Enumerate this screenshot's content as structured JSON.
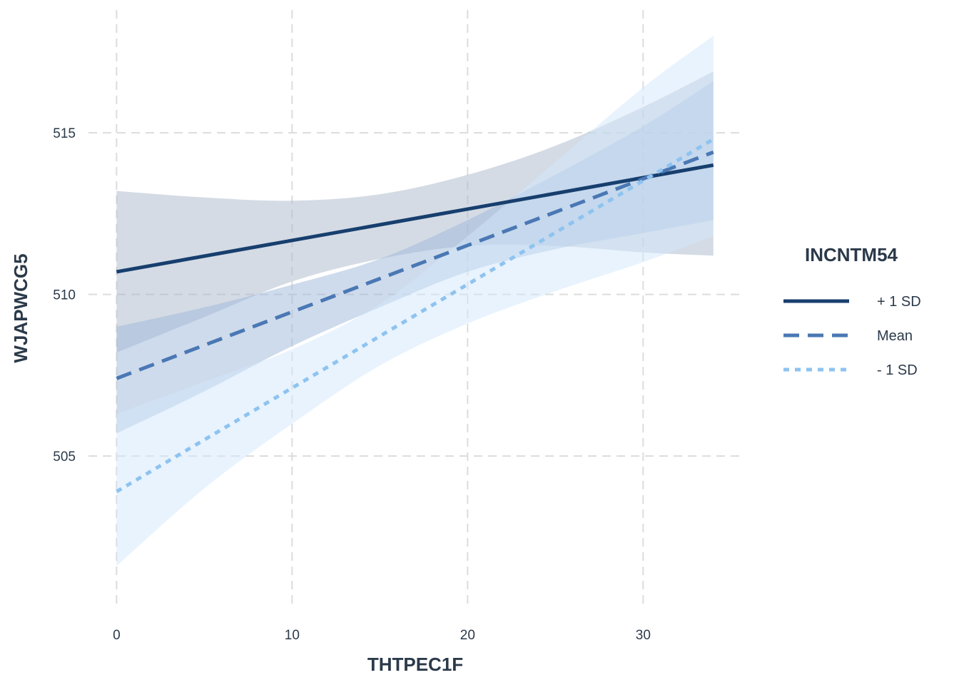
{
  "chart_data": {
    "type": "line",
    "title": "",
    "xlabel": "THTPEC1F",
    "ylabel": "WJAPWCG5",
    "xlim": [
      -1.6,
      35.8
    ],
    "ylim": [
      500.3,
      518.8
    ],
    "x_ticks": [
      0,
      10,
      20,
      30
    ],
    "y_ticks": [
      505,
      510,
      515
    ],
    "grid": true,
    "legend": {
      "title": "INCNTM54",
      "placement": "right"
    },
    "x": [
      0,
      34
    ],
    "series": [
      {
        "name": "+ 1 SD",
        "color": "#173f6e",
        "dash": "solid",
        "band_color": "#a9b8cb",
        "start": 510.7,
        "end": 514.0,
        "ci_x": [
          0,
          5,
          10,
          15,
          20,
          25,
          30,
          34
        ],
        "ci_upper": [
          513.2,
          513.0,
          512.9,
          513.1,
          513.7,
          514.6,
          515.8,
          516.9
        ],
        "ci_lower": [
          508.2,
          509.3,
          510.4,
          511.1,
          511.5,
          511.5,
          511.3,
          511.2
        ]
      },
      {
        "name": "Mean",
        "color": "#4a78b4",
        "dash": "dashed",
        "band_color": "#9db8d9",
        "start": 507.4,
        "end": 514.4,
        "ci_x": [
          0,
          5,
          10,
          15,
          20,
          25,
          30,
          34
        ],
        "ci_upper": [
          509.0,
          509.6,
          510.3,
          511.1,
          512.3,
          513.7,
          515.2,
          516.6
        ],
        "ci_lower": [
          505.7,
          507.0,
          508.4,
          509.6,
          510.7,
          511.4,
          511.9,
          512.3
        ]
      },
      {
        "name": "- 1 SD",
        "color": "#8ec3f0",
        "dash": "dotted",
        "band_color": "#d2e8fb",
        "start": 503.9,
        "end": 514.8,
        "ci_x": [
          0,
          5,
          10,
          15,
          20,
          25,
          30,
          34
        ],
        "ci_upper": [
          506.3,
          507.3,
          508.3,
          509.7,
          511.8,
          514.1,
          516.4,
          518.0
        ],
        "ci_lower": [
          501.6,
          504.0,
          506.0,
          507.8,
          509.1,
          510.1,
          511.0,
          511.8
        ]
      }
    ]
  }
}
